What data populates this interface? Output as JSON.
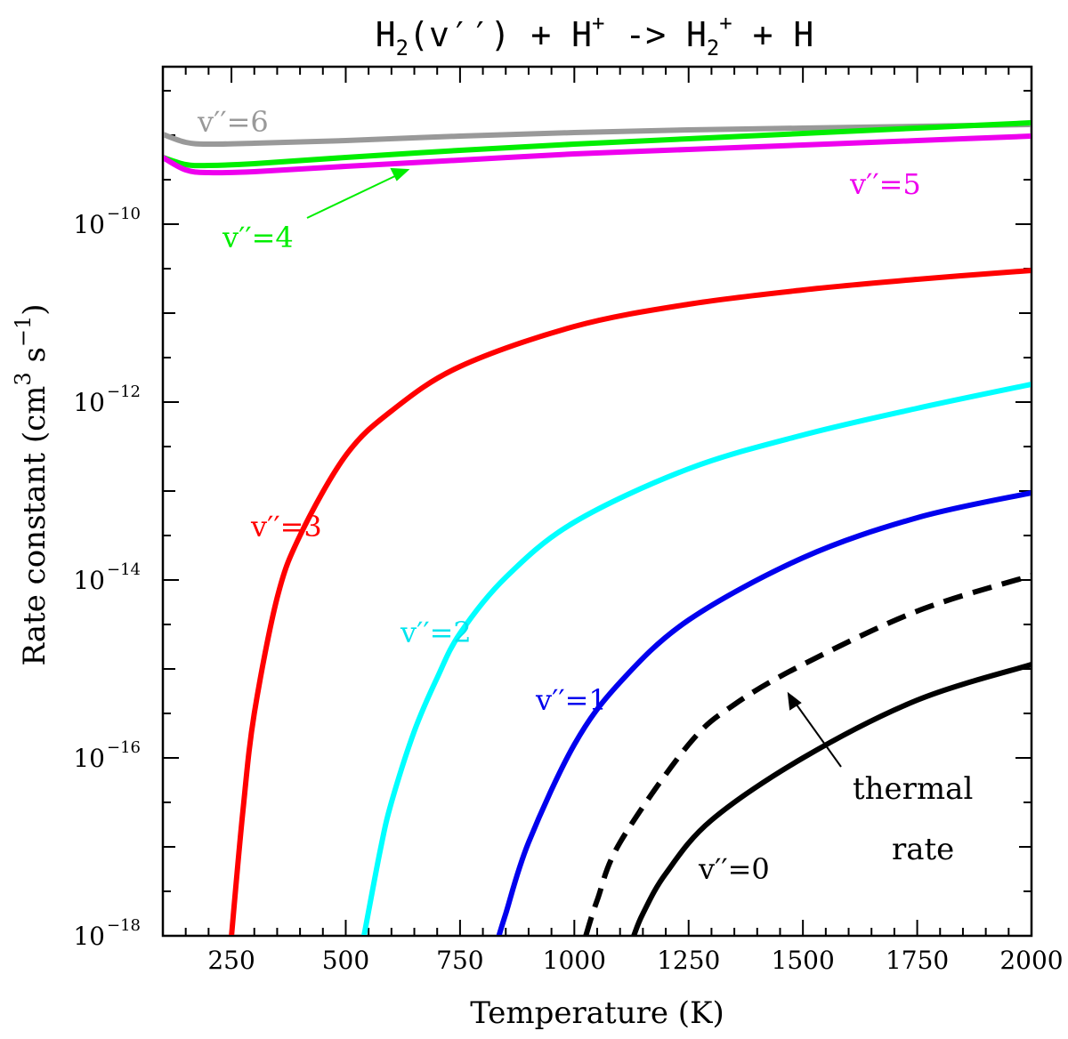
{
  "chart_data": {
    "type": "line",
    "title": {
      "parts": [
        "H",
        "2",
        "(v′′)  +  H",
        "+",
        "  ->  H",
        "2",
        "+",
        "  +  H"
      ]
    },
    "xlabel": "Temperature (K)",
    "ylabel": {
      "main": "Rate constant (cm",
      "sup1": "3",
      "mid": " s",
      "sup2": "−1",
      "end": ")"
    },
    "xlim": [
      100,
      2000
    ],
    "ylim_log10": [
      -18,
      -8.23
    ],
    "x_ticks": [
      250,
      500,
      750,
      1000,
      1250,
      1500,
      1750,
      2000
    ],
    "x_tick_labels": [
      "250",
      "500",
      "750",
      "1000",
      "1250",
      "1500",
      "1750",
      "2000"
    ],
    "y_ticks": [
      {
        "base": "10",
        "exp": "−10",
        "log": -10
      },
      {
        "base": "10",
        "exp": "−12",
        "log": -12
      },
      {
        "base": "10",
        "exp": "−14",
        "log": -14
      },
      {
        "base": "10",
        "exp": "−16",
        "log": -16
      },
      {
        "base": "10",
        "exp": "−18",
        "log": -18
      }
    ],
    "series": [
      {
        "name": "v''=6",
        "label": "v′′=6",
        "color": "#999999",
        "dash": false,
        "x": [
          100,
          150,
          200,
          300,
          500,
          750,
          1000,
          1250,
          1500,
          1750,
          2000
        ],
        "log_k": [
          -8.99,
          -9.08,
          -9.1,
          -9.09,
          -9.06,
          -9.01,
          -8.97,
          -8.94,
          -8.92,
          -8.9,
          -8.88
        ]
      },
      {
        "name": "v''=4",
        "label": "v′′=4",
        "color": "#00ee00",
        "dash": false,
        "x": [
          100,
          150,
          200,
          300,
          500,
          750,
          1000,
          1250,
          1500,
          1750,
          2000
        ],
        "log_k": [
          -9.25,
          -9.33,
          -9.34,
          -9.32,
          -9.25,
          -9.17,
          -9.1,
          -9.04,
          -8.98,
          -8.92,
          -8.86
        ]
      },
      {
        "name": "v''=5",
        "label": "v′′=5",
        "color": "#ee00ee",
        "dash": false,
        "x": [
          100,
          150,
          200,
          300,
          500,
          750,
          1000,
          1250,
          1500,
          1750,
          2000
        ],
        "log_k": [
          -9.25,
          -9.39,
          -9.42,
          -9.41,
          -9.35,
          -9.28,
          -9.21,
          -9.16,
          -9.11,
          -9.06,
          -9.01
        ]
      },
      {
        "name": "v''=3",
        "label": "v′′=3",
        "color": "#ff0000",
        "dash": false,
        "x": [
          250,
          275,
          300,
          350,
          400,
          500,
          600,
          750,
          1000,
          1250,
          1500,
          1750,
          2000
        ],
        "log_k": [
          -18.0,
          -16.6,
          -15.5,
          -14.2,
          -13.5,
          -12.6,
          -12.1,
          -11.6,
          -11.15,
          -10.9,
          -10.74,
          -10.62,
          -10.52
        ]
      },
      {
        "name": "v''=2",
        "label": "v′′=2",
        "color": "#00ffff",
        "dash": false,
        "x": [
          540,
          575,
          600,
          650,
          700,
          750,
          850,
          1000,
          1250,
          1500,
          1750,
          2000
        ],
        "log_k": [
          -18.0,
          -17.05,
          -16.5,
          -15.7,
          -15.1,
          -14.6,
          -13.97,
          -13.35,
          -12.75,
          -12.37,
          -12.07,
          -11.8
        ]
      },
      {
        "name": "v''=1",
        "label": "v′′=1",
        "color": "#0000ee",
        "dash": false,
        "x": [
          835,
          850,
          900,
          1000,
          1100,
          1250,
          1500,
          1750,
          2000
        ],
        "log_k": [
          -18.0,
          -17.75,
          -16.95,
          -15.85,
          -15.15,
          -14.45,
          -13.75,
          -13.3,
          -13.02
        ]
      },
      {
        "name": "thermal rate",
        "label": "thermal rate",
        "color": "#000000",
        "dash": true,
        "x": [
          1025,
          1050,
          1100,
          1250,
          1350,
          1500,
          1750,
          2000
        ],
        "log_k": [
          -18.0,
          -17.6,
          -16.95,
          -15.85,
          -15.4,
          -14.95,
          -14.35,
          -13.95
        ]
      },
      {
        "name": "v''=0",
        "label": "v′′=0",
        "color": "#000000",
        "dash": false,
        "x": [
          1130,
          1150,
          1200,
          1300,
          1500,
          1750,
          2000
        ],
        "log_k": [
          -18.0,
          -17.75,
          -17.3,
          -16.7,
          -16.0,
          -15.35,
          -14.95
        ]
      }
    ],
    "annotations": {
      "thermal_line1": "thermal",
      "thermal_line2": "rate"
    }
  }
}
